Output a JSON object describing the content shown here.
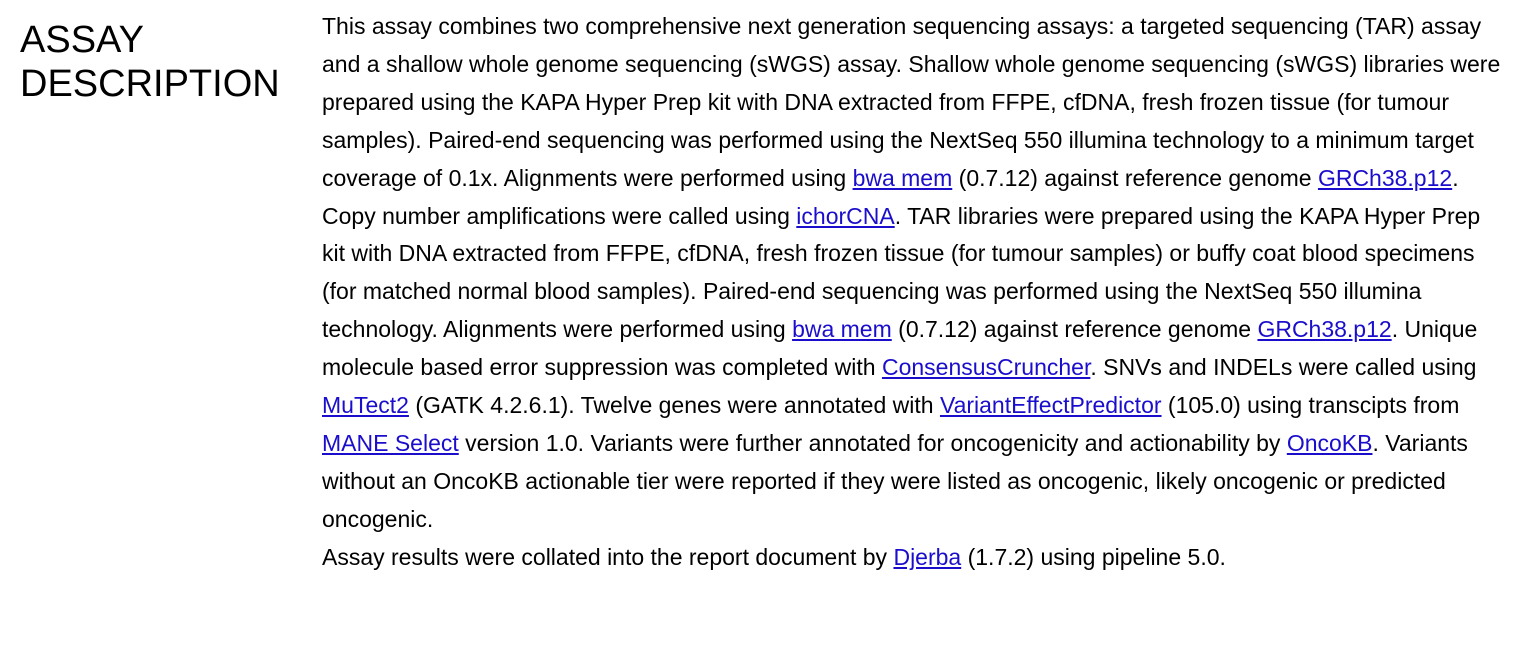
{
  "section": {
    "title_line1": "ASSAY",
    "title_line2": "DESCRIPTION"
  },
  "text": {
    "p1_a": "This assay combines two comprehensive next generation sequencing assays: a targeted sequencing (TAR) assay and a shallow whole genome sequencing (sWGS) assay. Shallow whole genome sequencing (sWGS) libraries were prepared using the KAPA Hyper Prep kit with DNA extracted from FFPE, cfDNA, fresh frozen tissue (for tumour samples). Paired-end sequencing was performed using the NextSeq 550 illumina technology to a minimum target coverage of 0.1x. Alignments were performed using ",
    "p1_b": " (0.7.12) against reference genome ",
    "p1_c": ". Copy number amplifications were called using ",
    "p1_d": ". TAR libraries were prepared using the KAPA Hyper Prep kit with DNA extracted from FFPE, cfDNA, fresh frozen tissue (for tumour samples) or buffy coat blood specimens (for matched normal blood samples). Paired-end sequencing was performed using the NextSeq 550 illumina technology. Alignments were performed using ",
    "p1_e": " (0.7.12) against reference genome ",
    "p1_f": ". Unique molecule based error suppression was completed with ",
    "p1_g": ". SNVs and INDELs were called using ",
    "p1_h": " (GATK 4.2.6.1). Twelve genes were annotated with ",
    "p1_i": " (105.0) using transcipts from ",
    "p1_j": " version 1.0. Variants were further annotated for oncogenicity and actionability by ",
    "p1_k": ". Variants without an OncoKB actionable tier were reported if they were listed as oncogenic, likely oncogenic or predicted oncogenic.",
    "p2_a": "Assay results were collated into the report document by ",
    "p2_b": " (1.7.2) using pipeline 5.0."
  },
  "links": {
    "bwa_mem_1": "bwa mem",
    "grch38_1": "GRCh38.p12",
    "ichorcna": "ichorCNA",
    "bwa_mem_2": "bwa mem",
    "grch38_2": "GRCh38.p12",
    "consensuscruncher": "ConsensusCruncher",
    "mutect2": "MuTect2",
    "vep": "VariantEffectPredictor",
    "mane_select": "MANE Select",
    "oncokb": "OncoKB",
    "djerba": "Djerba"
  },
  "colors": {
    "link": "#1a0dcc",
    "text": "#000000",
    "background": "#ffffff"
  }
}
